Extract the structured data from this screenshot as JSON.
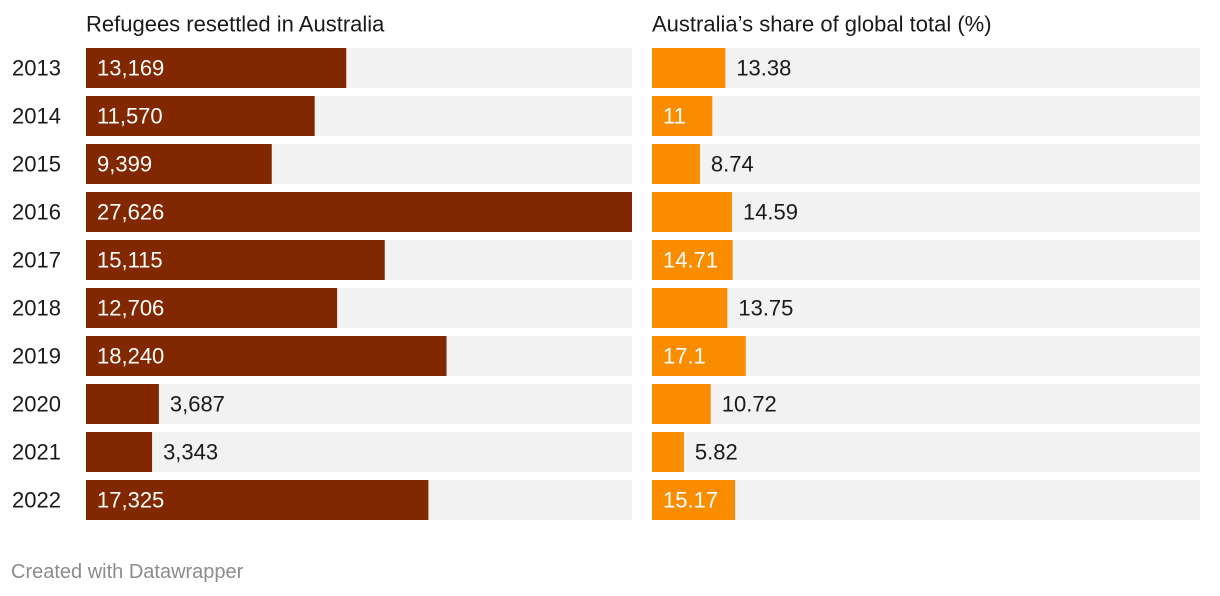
{
  "chart_data": [
    {
      "type": "bar",
      "orientation": "horizontal",
      "title": "Refugees resettled in Australia",
      "categories": [
        "2013",
        "2014",
        "2015",
        "2016",
        "2017",
        "2018",
        "2019",
        "2020",
        "2021",
        "2022"
      ],
      "values": [
        13169,
        11570,
        9399,
        27626,
        15115,
        12706,
        18240,
        3687,
        3343,
        17325
      ],
      "labels": [
        "13,169",
        "11,570",
        "9,399",
        "27,626",
        "15,115",
        "12,706",
        "18,240",
        "3,687",
        "3,343",
        "17,325"
      ],
      "xlim": [
        0,
        27626
      ],
      "color": "#822800",
      "track_color": "#f2f2f2"
    },
    {
      "type": "bar",
      "orientation": "horizontal",
      "title": "Australia’s share of global total (%)",
      "categories": [
        "2013",
        "2014",
        "2015",
        "2016",
        "2017",
        "2018",
        "2019",
        "2020",
        "2021",
        "2022"
      ],
      "values": [
        13.38,
        11,
        8.74,
        14.59,
        14.71,
        13.75,
        17.1,
        10.72,
        5.82,
        15.17
      ],
      "labels": [
        "13.38",
        "11",
        "8.74",
        "14.59",
        "14.71",
        "13.75",
        "17.1",
        "10.72",
        "5.82",
        "15.17"
      ],
      "label_inside": [
        false,
        true,
        false,
        false,
        true,
        false,
        true,
        false,
        false,
        true
      ],
      "xlim": [
        0,
        100
      ],
      "color": "#fa8c00",
      "track_color": "#f2f2f2"
    }
  ],
  "footer": "Created with Datawrapper"
}
